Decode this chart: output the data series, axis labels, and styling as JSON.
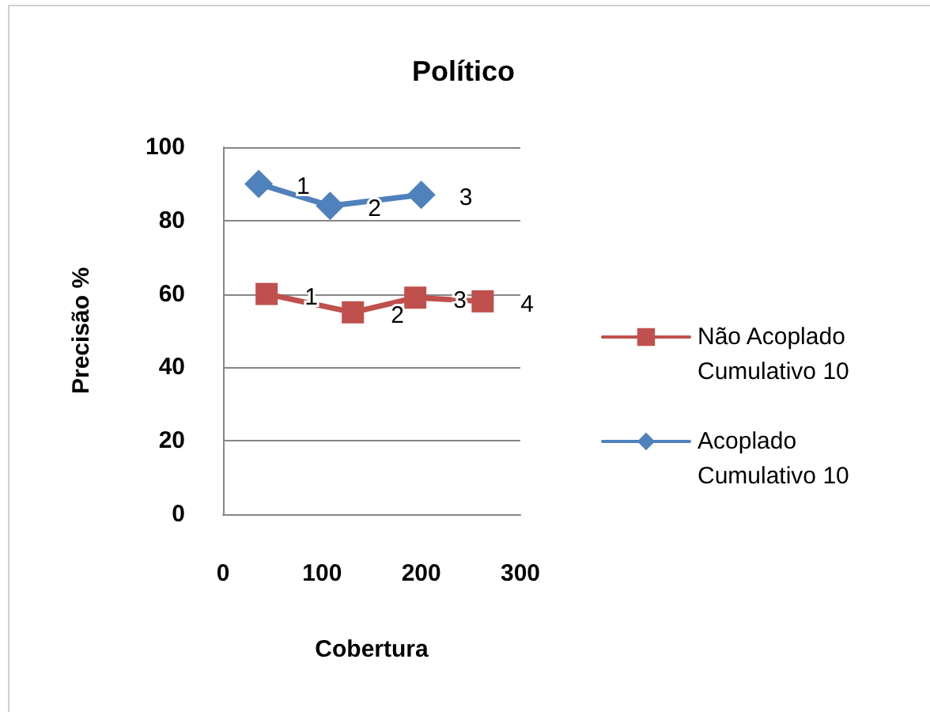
{
  "chart_data": {
    "type": "line",
    "title": "Político",
    "xlabel": "Cobertura",
    "ylabel": "Precisão %",
    "xlim": [
      0,
      300
    ],
    "xticks": [
      0,
      100,
      200,
      300
    ],
    "ylim": [
      0,
      100
    ],
    "yticks": [
      0,
      20,
      40,
      60,
      80,
      100
    ],
    "grid": "y",
    "legend": "right",
    "line_style": "solid",
    "series": [
      {
        "name": "Não Acoplado Cumulativo 10",
        "color": "#c0504d",
        "marker": "square",
        "x": [
          44,
          131,
          194,
          262
        ],
        "values": [
          60,
          55,
          59,
          58
        ]
      },
      {
        "name": "Acoplado Cumulativo 10",
        "color": "#4f81bd",
        "marker": "diamond",
        "x": [
          36,
          108,
          200
        ],
        "values": [
          90,
          84,
          87
        ]
      }
    ],
    "annotations": [
      {
        "text": "1",
        "x": 44,
        "y": 60
      },
      {
        "text": "2",
        "x": 131,
        "y": 55
      },
      {
        "text": "3",
        "x": 194,
        "y": 59
      },
      {
        "text": "4",
        "x": 262,
        "y": 58
      },
      {
        "text": "1",
        "x": 36,
        "y": 90
      },
      {
        "text": "2",
        "x": 108,
        "y": 84
      },
      {
        "text": "3",
        "x": 200,
        "y": 87
      }
    ]
  }
}
